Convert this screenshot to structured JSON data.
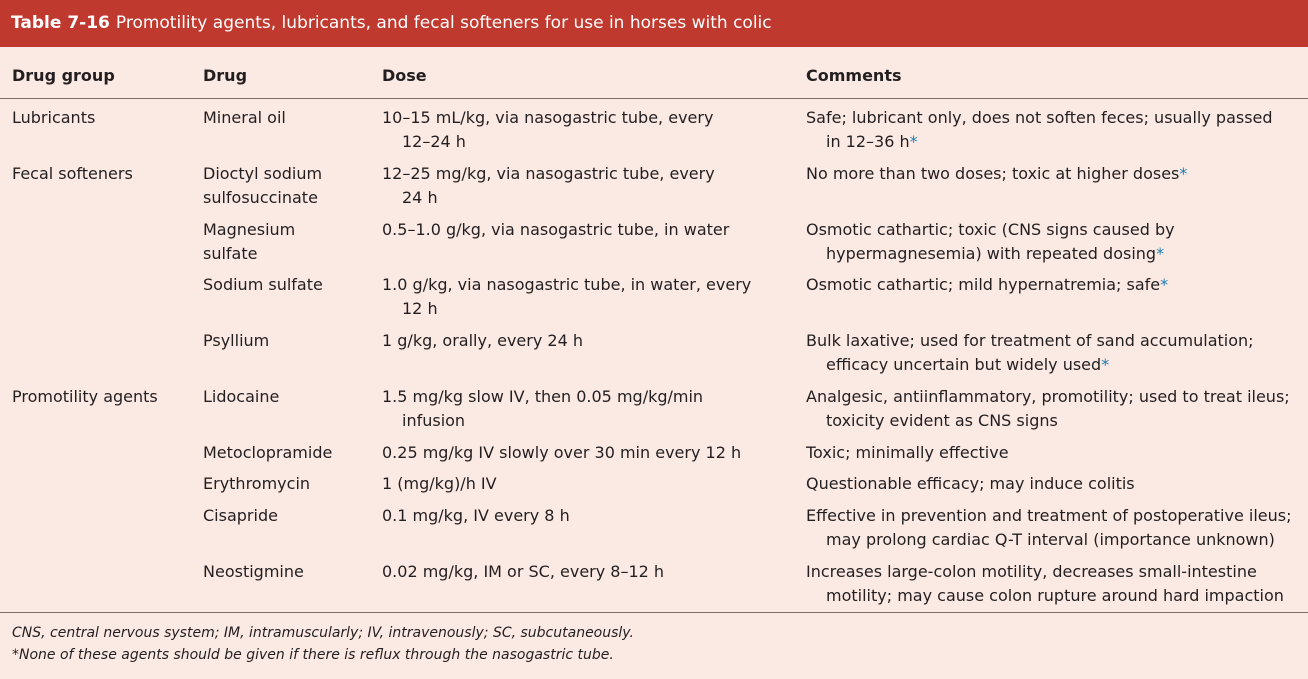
{
  "title": {
    "number": "Table 7-16",
    "text": "Promotility agents, lubricants, and fecal softeners for use in horses with colic"
  },
  "headers": {
    "group": "Drug group",
    "drug": "Drug",
    "dose": "Dose",
    "comments": "Comments"
  },
  "rows": [
    {
      "group": "Lubricants",
      "drug": [
        "Mineral oil"
      ],
      "dose": [
        "10–15 mL/kg, via nasogastric tube, every",
        "12–24 h"
      ],
      "comments": [
        "Safe; lubricant only, does not soften feces; usually passed",
        "in 12–36 h"
      ],
      "star": "*"
    },
    {
      "group": "Fecal softeners",
      "drug": [
        "Dioctyl sodium",
        "sulfosuccinate"
      ],
      "dose": [
        "12–25 mg/kg, via nasogastric tube, every",
        "24 h"
      ],
      "comments": [
        "No more than two doses; toxic at higher doses"
      ],
      "star": "*"
    },
    {
      "group": "",
      "drug": [
        "Magnesium",
        "sulfate"
      ],
      "dose": [
        "0.5–1.0 g/kg, via nasogastric tube, in water"
      ],
      "comments": [
        "Osmotic cathartic; toxic (CNS signs caused by",
        "hypermagnesemia) with repeated dosing"
      ],
      "star": "*"
    },
    {
      "group": "",
      "drug": [
        "Sodium sulfate"
      ],
      "dose": [
        "1.0 g/kg, via nasogastric tube, in water, every",
        "12 h"
      ],
      "comments": [
        "Osmotic cathartic; mild hypernatremia; safe"
      ],
      "star": "*"
    },
    {
      "group": "",
      "drug": [
        "Psyllium"
      ],
      "dose": [
        "1 g/kg, orally, every 24 h"
      ],
      "comments": [
        "Bulk laxative; used for treatment of sand accumulation;",
        "efficacy uncertain but widely used"
      ],
      "star": "*"
    },
    {
      "group": "Promotility agents",
      "drug": [
        "Lidocaine"
      ],
      "dose": [
        "1.5 mg/kg slow IV, then 0.05 mg/kg/min",
        "infusion"
      ],
      "comments": [
        "Analgesic, antiinflammatory, promotility; used to treat ileus;",
        "toxicity evident as CNS signs"
      ],
      "star": ""
    },
    {
      "group": "",
      "drug": [
        "Metoclopramide"
      ],
      "dose": [
        "0.25 mg/kg IV slowly over 30 min every 12 h"
      ],
      "comments": [
        "Toxic; minimally effective"
      ],
      "star": ""
    },
    {
      "group": "",
      "drug": [
        "Erythromycin"
      ],
      "dose": [
        "1 (mg/kg)/h IV"
      ],
      "comments": [
        "Questionable efficacy; may induce colitis"
      ],
      "star": ""
    },
    {
      "group": "",
      "drug": [
        "Cisapride"
      ],
      "dose": [
        "0.1 mg/kg, IV every 8 h"
      ],
      "comments": [
        "Effective in prevention and treatment of postoperative ileus;",
        "may prolong cardiac Q-T interval (importance unknown)"
      ],
      "star": ""
    },
    {
      "group": "",
      "drug": [
        "Neostigmine"
      ],
      "dose": [
        "0.02 mg/kg, IM or SC, every 8–12 h"
      ],
      "comments": [
        "Increases large-colon motility, decreases small-intestine",
        "motility; may cause colon rupture around hard impaction"
      ],
      "star": ""
    }
  ],
  "footnotes": [
    "CNS, central nervous system; IM, intramuscularly; IV, intravenously; SC, subcutaneously.",
    "*None of these agents should be given if there is reflux through the nasogastric tube."
  ],
  "colors": {
    "title_bg": "#c0392e",
    "body_bg": "#fbe9e3",
    "star": "#1a7db5"
  }
}
